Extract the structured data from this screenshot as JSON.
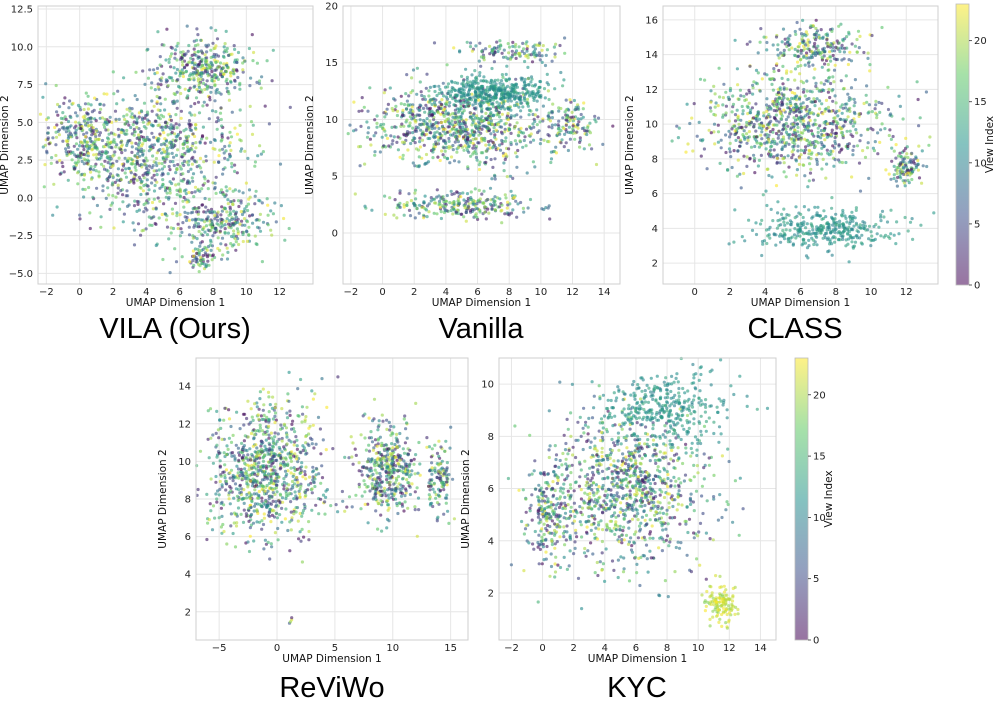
{
  "colors": {
    "viridis": [
      "#440154",
      "#3b528b",
      "#21918c",
      "#5ec962",
      "#fde725"
    ],
    "grid": "#e6e6e6",
    "frame": "#cfcfcf"
  },
  "colorbar": {
    "label": "View Index",
    "ticks": [
      "0",
      "5",
      "10",
      "15",
      "20"
    ],
    "range": [
      0,
      23
    ],
    "alpha": 0.55
  },
  "chart_data": [
    {
      "type": "scatter",
      "title": "VILA (Ours)",
      "xlabel": "UMAP Dimension 1",
      "ylabel": "UMAP Dimension 2",
      "xlim": [
        -2.5,
        14
      ],
      "ylim": [
        -5.7,
        12.7
      ],
      "xticks": [
        -2,
        0,
        2,
        4,
        6,
        8,
        10,
        12
      ],
      "yticks": [
        -5.0,
        -2.5,
        0.0,
        2.5,
        5.0,
        7.5,
        10.0,
        12.5
      ],
      "ytick_labels": [
        "−5.0",
        "−2.5",
        "0.0",
        "2.5",
        "5.0",
        "7.5",
        "10.0",
        "12.5"
      ],
      "xtick_labels": [
        "−2",
        "0",
        "2",
        "4",
        "6",
        "8",
        "10",
        "12"
      ],
      "clusters": [
        {
          "cx": 4.5,
          "cy": 3.0,
          "sx": 5.5,
          "sy": 4.5,
          "n": 900,
          "v": "mix"
        },
        {
          "cx": 7.5,
          "cy": 8.5,
          "sx": 3.0,
          "sy": 2.0,
          "n": 350,
          "v": "mix"
        },
        {
          "cx": 8.5,
          "cy": -1.5,
          "sx": 3.5,
          "sy": 2.0,
          "n": 300,
          "v": "mix"
        },
        {
          "cx": 0.0,
          "cy": 4.0,
          "sx": 2.0,
          "sy": 2.5,
          "n": 220,
          "v": "mix"
        },
        {
          "cx": 7.5,
          "cy": -4.0,
          "sx": 1.0,
          "sy": 1.0,
          "n": 60,
          "v": "mix"
        }
      ]
    },
    {
      "type": "scatter",
      "title": "Vanilla",
      "xlabel": "UMAP Dimension 1",
      "ylabel": "UMAP Dimension 2",
      "xlim": [
        -2.5,
        15
      ],
      "ylim": [
        -4.5,
        20
      ],
      "xticks": [
        -2,
        0,
        2,
        4,
        6,
        8,
        10,
        12,
        14
      ],
      "yticks": [
        0,
        5,
        10,
        15,
        20
      ],
      "ytick_labels": [
        "0",
        "5",
        "10",
        "15",
        "20"
      ],
      "xtick_labels": [
        "−2",
        "0",
        "2",
        "4",
        "6",
        "8",
        "10",
        "12",
        "14"
      ],
      "clusters": [
        {
          "cx": 5.0,
          "cy": 9.5,
          "sx": 6.0,
          "sy": 3.5,
          "n": 900,
          "v": "mix"
        },
        {
          "cx": 7.0,
          "cy": 12.5,
          "sx": 3.5,
          "sy": 1.5,
          "n": 400,
          "v": "teal"
        },
        {
          "cx": 5.0,
          "cy": 2.5,
          "sx": 4.5,
          "sy": 1.2,
          "n": 260,
          "v": "mix"
        },
        {
          "cx": 8.5,
          "cy": 16.0,
          "sx": 3.5,
          "sy": 1.0,
          "n": 120,
          "v": "mix"
        },
        {
          "cx": 12.0,
          "cy": 9.5,
          "sx": 1.5,
          "sy": 2.0,
          "n": 100,
          "v": "mix"
        }
      ]
    },
    {
      "type": "scatter",
      "title": "CLASS",
      "xlabel": "UMAP Dimension 1",
      "ylabel": "UMAP Dimension 2",
      "xlim": [
        -1.8,
        13.8
      ],
      "ylim": [
        0.8,
        16.8
      ],
      "xticks": [
        0,
        2,
        4,
        6,
        8,
        10,
        12
      ],
      "yticks": [
        2,
        4,
        6,
        8,
        10,
        12,
        14,
        16
      ],
      "ytick_labels": [
        "2",
        "4",
        "6",
        "8",
        "10",
        "12",
        "14",
        "16"
      ],
      "xtick_labels": [
        "0",
        "2",
        "4",
        "6",
        "8",
        "10",
        "12"
      ],
      "clusters": [
        {
          "cx": 5.5,
          "cy": 10.0,
          "sx": 5.5,
          "sy": 3.0,
          "n": 900,
          "v": "mix"
        },
        {
          "cx": 7.0,
          "cy": 14.5,
          "sx": 3.0,
          "sy": 1.2,
          "n": 220,
          "v": "mix"
        },
        {
          "cx": 7.5,
          "cy": 4.0,
          "sx": 4.0,
          "sy": 1.2,
          "n": 350,
          "v": "teal"
        },
        {
          "cx": 12.0,
          "cy": 7.5,
          "sx": 0.8,
          "sy": 1.2,
          "n": 100,
          "v": "mix"
        }
      ]
    },
    {
      "type": "scatter",
      "title": "ReViWo",
      "xlabel": "UMAP Dimension 1",
      "ylabel": "UMAP Dimension 2",
      "xlim": [
        -7,
        16.5
      ],
      "ylim": [
        0.5,
        15.5
      ],
      "xticks": [
        -5,
        0,
        5,
        10,
        15
      ],
      "yticks": [
        2,
        4,
        6,
        8,
        10,
        12,
        14
      ],
      "ytick_labels": [
        "2",
        "4",
        "6",
        "8",
        "10",
        "12",
        "14"
      ],
      "xtick_labels": [
        "−5",
        "0",
        "5",
        "10",
        "15"
      ],
      "clusters": [
        {
          "cx": -1.0,
          "cy": 9.5,
          "sx": 5.0,
          "sy": 3.5,
          "n": 900,
          "v": "mix"
        },
        {
          "cx": 9.5,
          "cy": 9.5,
          "sx": 2.5,
          "sy": 2.5,
          "n": 420,
          "v": "mix"
        },
        {
          "cx": 14.0,
          "cy": 9.0,
          "sx": 1.2,
          "sy": 1.8,
          "n": 120,
          "v": "mix"
        },
        {
          "cx": 1.2,
          "cy": 1.5,
          "sx": 0.15,
          "sy": 0.15,
          "n": 4,
          "v": "mix"
        }
      ]
    },
    {
      "type": "scatter",
      "title": "KYC",
      "xlabel": "UMAP Dimension 1",
      "ylabel": "UMAP Dimension 2",
      "xlim": [
        -2.8,
        15
      ],
      "ylim": [
        0.2,
        11
      ],
      "xticks": [
        -2,
        0,
        2,
        4,
        6,
        8,
        10,
        12,
        14
      ],
      "yticks": [
        2,
        4,
        6,
        8,
        10
      ],
      "ytick_labels": [
        "2",
        "4",
        "6",
        "8",
        "10"
      ],
      "xtick_labels": [
        "−2",
        "0",
        "2",
        "4",
        "6",
        "8",
        "10",
        "12",
        "14"
      ],
      "clusters": [
        {
          "cx": 5.5,
          "cy": 6.0,
          "sx": 5.5,
          "sy": 3.0,
          "n": 1000,
          "v": "mix"
        },
        {
          "cx": 8.0,
          "cy": 9.0,
          "sx": 4.0,
          "sy": 1.5,
          "n": 350,
          "v": "teal"
        },
        {
          "cx": 11.5,
          "cy": 1.6,
          "sx": 1.0,
          "sy": 0.8,
          "n": 120,
          "v": "yellow"
        },
        {
          "cx": 0.5,
          "cy": 5.0,
          "sx": 1.5,
          "sy": 2.0,
          "n": 200,
          "v": "mix"
        }
      ]
    }
  ]
}
